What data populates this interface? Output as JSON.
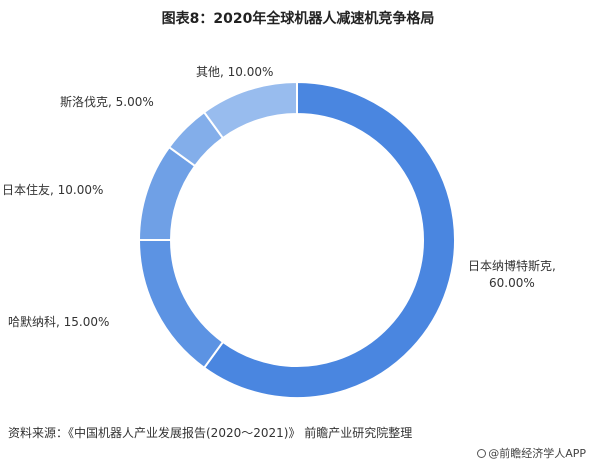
{
  "title": "图表8：2020年全球机器人减速机竞争格局",
  "source": "资料来源：《中国机器人产业发展报告(2020～2021)》 前瞻产业研究院整理",
  "footer": "@前瞻经济学人APP",
  "chart_data": {
    "type": "pie",
    "style": "donut",
    "categories": [
      "日本纳博特斯克",
      "哈默纳科",
      "日本住友",
      "斯洛伐克",
      "其他"
    ],
    "values": [
      60.0,
      15.0,
      10.0,
      5.0,
      10.0
    ],
    "labels": [
      "日本纳博特斯克,\n60.00%",
      "哈默纳科, 15.00%",
      "日本住友, 10.00%",
      "斯洛伐克, 5.00%",
      "其他, 10.00%"
    ],
    "colors": [
      "#4a86e0",
      "#5c93e3",
      "#6fa0e6",
      "#83aeea",
      "#98bcee"
    ],
    "legend": "none"
  }
}
